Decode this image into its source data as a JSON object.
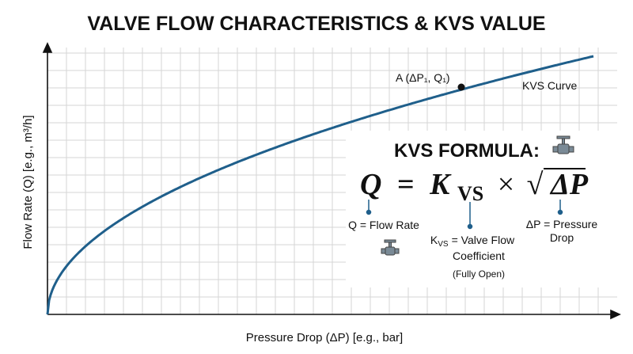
{
  "header": {
    "title": "VALVE FLOW CHARACTERISTICS & KVS VALUE"
  },
  "axes": {
    "x_label": "Pressure Drop (ΔP) [e.g., bar]",
    "y_label": "Flow Rate (Q) [e.g., m³/h]"
  },
  "curve": {
    "label": "KVS Curve",
    "point_label": "A (ΔP₁, Q₁)"
  },
  "formula": {
    "heading": "KVS FORMULA:",
    "lhs": "Q",
    "equals": "=",
    "k": "K",
    "k_sub": "VS",
    "times": "×",
    "root": "√",
    "rhs": "ΔP"
  },
  "terms": {
    "q": "Q = Flow Rate",
    "kvs": {
      "symbol": "K",
      "sub": "VS",
      "line1": "= Valve Flow",
      "line2": "Coefficient",
      "line3": "(Fully Open)"
    },
    "dp": {
      "line1": "ΔP = Pressure",
      "line2": "Drop"
    }
  }
}
